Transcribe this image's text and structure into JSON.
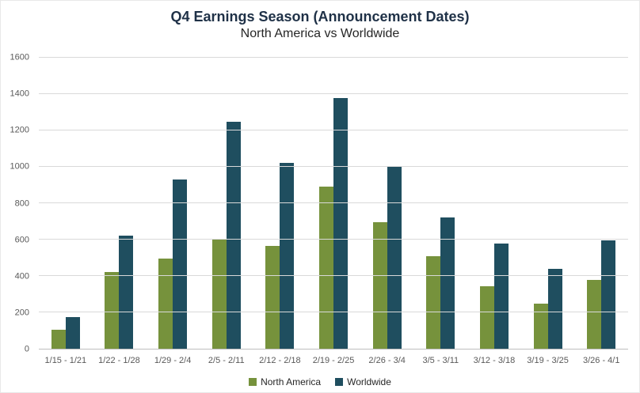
{
  "chart_data": {
    "type": "bar",
    "title": "Q4 Earnings Season (Announcement Dates)",
    "subtitle": "North America vs Worldwide",
    "categories": [
      "1/15 - 1/21",
      "1/22 - 1/28",
      "1/29 - 2/4",
      "2/5 - 2/11",
      "2/12 - 2/18",
      "2/19 - 2/25",
      "2/26 - 3/4",
      "3/5 - 3/11",
      "3/12 - 3/18",
      "3/19 - 3/25",
      "3/26 - 4/1"
    ],
    "series": [
      {
        "name": "North America",
        "color": "#76923C",
        "values": [
          105,
          420,
          495,
          600,
          565,
          890,
          695,
          510,
          345,
          250,
          380
        ]
      },
      {
        "name": "Worldwide",
        "color": "#1F4E5F",
        "values": [
          175,
          620,
          930,
          1250,
          1020,
          1380,
          1000,
          720,
          580,
          440,
          595
        ]
      }
    ],
    "xlabel": "",
    "ylabel": "",
    "ylim": [
      0,
      1600
    ],
    "ytick_step": 200,
    "grid": "horizontal",
    "legend_position": "bottom",
    "colors": {
      "title": "#1F3147",
      "subtitle": "#262626",
      "axis_text": "#595959",
      "gridline": "#D9D9D9",
      "axis_line": "#BFBFBF",
      "background": "#FFFFFF"
    }
  }
}
